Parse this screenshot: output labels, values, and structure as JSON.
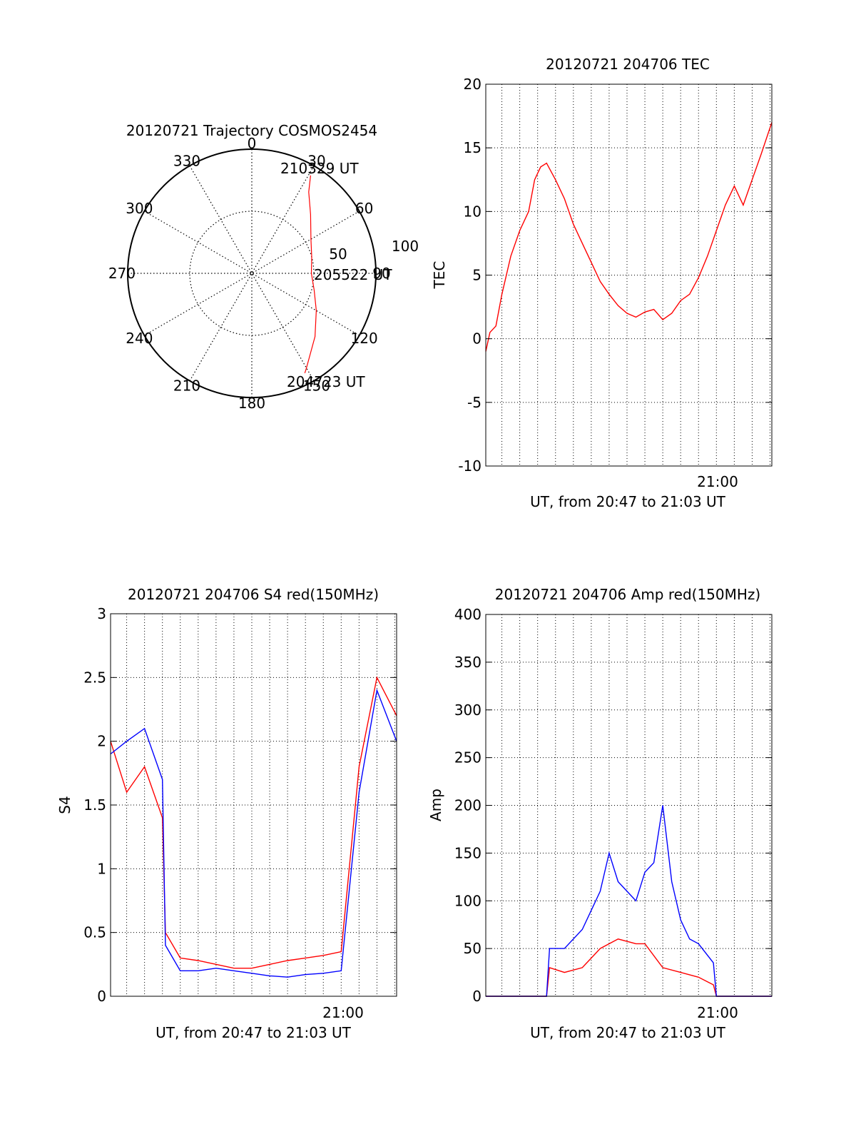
{
  "colors": {
    "red": "#ff0000",
    "blue": "#0000ff",
    "axis": "#000000",
    "grid": "#000000"
  },
  "chart_data": [
    {
      "id": "trajectory",
      "type": "polar",
      "title": "20120721 Trajectory COSMOS2454",
      "angle_labels": [
        "0",
        "30",
        "60",
        "90",
        "120",
        "150",
        "180",
        "210",
        "240",
        "270",
        "300",
        "330"
      ],
      "radial_labels": [
        "50",
        "100"
      ],
      "rlim": [
        0,
        100
      ],
      "annotations": [
        "210329 UT",
        "205522 UT",
        "204723 UT"
      ],
      "series": [
        {
          "color": "red",
          "points": [
            [
              31,
              92
            ],
            [
              35,
              80
            ],
            [
              45,
              67
            ],
            [
              60,
              55
            ],
            [
              75,
              50
            ],
            [
              90,
              48
            ],
            [
              105,
              52
            ],
            [
              120,
              60
            ],
            [
              135,
              72
            ],
            [
              150,
              88
            ],
            [
              152,
              91
            ]
          ]
        }
      ]
    },
    {
      "id": "tec",
      "type": "line",
      "title": "20120721 204706 TEC",
      "xlabel": "UT, from 20:47 to 21:03 UT",
      "ylabel": "TEC",
      "xlim": [
        "20:47:06",
        "21:03:06"
      ],
      "ylim": [
        -10,
        20
      ],
      "yticks": [
        "20",
        "15",
        "10",
        "5",
        "0",
        "-5",
        "-10"
      ],
      "xticks": [
        {
          "t": "21:00:00",
          "label": "21:00"
        }
      ],
      "series": [
        {
          "color": "red",
          "x": [
            "20:47:06",
            "20:47:20",
            "20:47:40",
            "20:48:00",
            "20:48:30",
            "20:49:00",
            "20:49:30",
            "20:49:50",
            "20:50:10",
            "20:50:30",
            "20:51:00",
            "20:51:30",
            "20:52:00",
            "20:52:30",
            "20:53:00",
            "20:53:30",
            "20:54:00",
            "20:54:30",
            "20:55:00",
            "20:55:30",
            "20:56:00",
            "20:56:30",
            "20:57:00",
            "20:57:30",
            "20:58:00",
            "20:58:30",
            "20:59:00",
            "20:59:30",
            "21:00:00",
            "21:00:30",
            "21:01:00",
            "21:01:30",
            "21:02:00",
            "21:02:30",
            "21:03:06"
          ],
          "y": [
            -1.0,
            0.5,
            1.0,
            3.5,
            6.5,
            8.5,
            10.0,
            12.5,
            13.5,
            13.8,
            12.5,
            11.0,
            9.0,
            7.5,
            6.0,
            4.5,
            3.5,
            2.6,
            2.0,
            1.7,
            2.1,
            2.3,
            1.5,
            2.0,
            3.0,
            3.5,
            4.8,
            6.5,
            8.5,
            10.5,
            12.0,
            10.5,
            12.5,
            14.5,
            17.0
          ]
        }
      ]
    },
    {
      "id": "s4",
      "type": "line",
      "title": "20120721 204706 S4 red(150MHz)",
      "xlabel": "UT, from 20:47 to 21:03 UT",
      "ylabel": "S4",
      "xlim": [
        "20:47:06",
        "21:03:06"
      ],
      "ylim": [
        0,
        3
      ],
      "yticks": [
        "3",
        "2.5",
        "2",
        "1.5",
        "1",
        "0.5",
        "0"
      ],
      "xticks": [
        {
          "t": "21:00:00",
          "label": "21:00"
        }
      ],
      "series": [
        {
          "color": "red",
          "x": [
            "20:47:06",
            "20:48:00",
            "20:49:00",
            "20:50:00",
            "20:50:10",
            "20:51:00",
            "20:52:00",
            "20:53:00",
            "20:54:00",
            "20:55:00",
            "20:56:00",
            "20:57:00",
            "20:58:00",
            "20:59:00",
            "21:00:00",
            "21:01:00",
            "21:02:00",
            "21:03:06"
          ],
          "y": [
            2.0,
            1.6,
            1.8,
            1.4,
            0.5,
            0.3,
            0.28,
            0.25,
            0.22,
            0.22,
            0.25,
            0.28,
            0.3,
            0.32,
            0.35,
            1.8,
            2.5,
            2.2
          ]
        },
        {
          "color": "blue",
          "x": [
            "20:47:06",
            "20:48:00",
            "20:49:00",
            "20:50:00",
            "20:50:10",
            "20:51:00",
            "20:52:00",
            "20:53:00",
            "20:54:00",
            "20:55:00",
            "20:56:00",
            "20:57:00",
            "20:58:00",
            "20:59:00",
            "21:00:00",
            "21:01:00",
            "21:02:00",
            "21:03:06"
          ],
          "y": [
            1.9,
            2.0,
            2.1,
            1.7,
            0.4,
            0.2,
            0.2,
            0.22,
            0.2,
            0.18,
            0.16,
            0.15,
            0.17,
            0.18,
            0.2,
            1.6,
            2.4,
            2.0
          ]
        }
      ]
    },
    {
      "id": "amp",
      "type": "line",
      "title": "20120721 204706 Amp red(150MHz)",
      "xlabel": "UT, from 20:47 to 21:03 UT",
      "ylabel": "Amp",
      "xlim": [
        "20:47:06",
        "21:03:06"
      ],
      "ylim": [
        0,
        400
      ],
      "yticks": [
        "400",
        "350",
        "300",
        "250",
        "200",
        "150",
        "100",
        "50",
        "0"
      ],
      "xticks": [
        {
          "t": "21:00:00",
          "label": "21:00"
        }
      ],
      "series": [
        {
          "color": "red",
          "x": [
            "20:47:06",
            "20:50:30",
            "20:50:40",
            "20:51:30",
            "20:52:30",
            "20:53:30",
            "20:54:30",
            "20:55:30",
            "20:56:00",
            "20:57:00",
            "20:58:00",
            "20:59:00",
            "20:59:50",
            "21:00:00",
            "21:03:06"
          ],
          "y": [
            0,
            0,
            30,
            25,
            30,
            50,
            60,
            55,
            55,
            30,
            25,
            20,
            12,
            0,
            0
          ]
        },
        {
          "color": "blue",
          "x": [
            "20:47:06",
            "20:50:30",
            "20:50:40",
            "20:51:30",
            "20:52:30",
            "20:53:30",
            "20:54:00",
            "20:54:30",
            "20:55:00",
            "20:55:30",
            "20:56:00",
            "20:56:30",
            "20:57:00",
            "20:57:30",
            "20:58:00",
            "20:58:30",
            "20:59:00",
            "20:59:50",
            "21:00:00",
            "21:03:06"
          ],
          "y": [
            0,
            0,
            50,
            50,
            70,
            110,
            150,
            120,
            110,
            100,
            130,
            140,
            200,
            120,
            80,
            60,
            55,
            35,
            0,
            0
          ]
        }
      ]
    }
  ]
}
